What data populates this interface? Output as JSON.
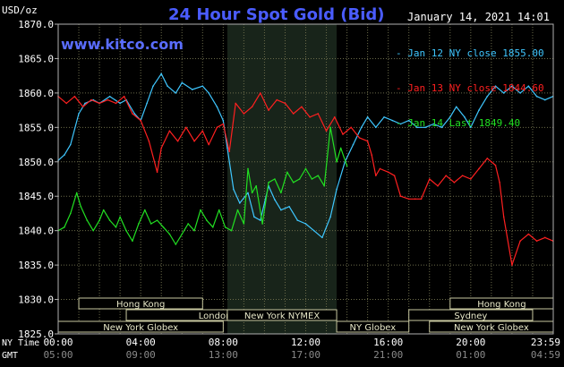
{
  "header": {
    "title": "24 Hour Spot Gold (Bid)",
    "website": "www.kitco.com",
    "date": "January 14, 2021 14:01",
    "unit": "USD/oz"
  },
  "axis_row_labels": {
    "ny": "NY Time",
    "gmt": "GMT"
  },
  "colors": {
    "background": "#000000",
    "grid": "#6b6b4a",
    "frame": "#b0b0b0",
    "nymex_band": "#18241a",
    "jan12": "#3fc7ff",
    "jan13": "#ff2020",
    "jan14": "#22e022",
    "title": "#4a5cff"
  },
  "sessions": [
    {
      "label": "Hong Kong",
      "start": 1.0,
      "end": 7.0
    },
    {
      "label": "London",
      "start": 3.3,
      "end": 11.9
    },
    {
      "label": "New York Globex",
      "start": 0.0,
      "end": 8.0
    },
    {
      "label": "New York NYMEX",
      "start": 8.2,
      "end": 13.5
    },
    {
      "label": "NY Globex",
      "start": 13.5,
      "end": 17.0
    },
    {
      "label": "Hong Kong",
      "start": 19.0,
      "end": 24.0
    },
    {
      "label": "Sydney",
      "start": 17.0,
      "end": 23.0
    },
    {
      "label": "New York Globex",
      "start": 18.0,
      "end": 24.0
    }
  ],
  "chart_data": {
    "type": "line",
    "title": "24 Hour Spot Gold (Bid)",
    "ylabel": "USD/oz",
    "ylim": [
      1825,
      1870
    ],
    "xlim": [
      0,
      24
    ],
    "y_ticks": [
      "1825.0",
      "1830.0",
      "1835.0",
      "1840.0",
      "1845.0",
      "1850.0",
      "1855.0",
      "1860.0",
      "1865.0",
      "1870.0"
    ],
    "x_ticks_ny": [
      "00:00",
      "04:00",
      "08:00",
      "12:00",
      "16:00",
      "20:00",
      "23:59"
    ],
    "x_ticks_gmt": [
      "05:00",
      "09:00",
      "13:00",
      "17:00",
      "21:00",
      "01:00",
      "04:59"
    ],
    "grid": true,
    "legend_position": "top-right",
    "series": [
      {
        "name": "Jan 12 NY close 1855.00",
        "color": "#3fc7ff",
        "x": [
          0,
          0.3,
          0.6,
          1.0,
          1.3,
          1.7,
          2.0,
          2.5,
          3.0,
          3.3,
          3.7,
          4.0,
          4.3,
          4.6,
          5.0,
          5.3,
          5.7,
          6.0,
          6.5,
          7.0,
          7.3,
          7.7,
          8.0,
          8.2,
          8.5,
          8.8,
          9.2,
          9.5,
          9.8,
          10.2,
          10.5,
          10.8,
          11.2,
          11.6,
          12.0,
          12.4,
          12.8,
          13.2,
          13.5,
          13.9,
          14.3,
          14.7,
          15.0,
          15.4,
          15.8,
          16.2,
          16.6,
          17.0,
          17.4,
          17.8,
          18.2,
          18.6,
          19.0,
          19.3,
          19.7,
          20.0,
          20.4,
          20.8,
          21.2,
          21.6,
          22.0,
          22.4,
          22.8,
          23.2,
          23.6,
          23.99
        ],
        "values": [
          1850.2,
          1851.0,
          1852.5,
          1857.0,
          1858.5,
          1859.0,
          1858.5,
          1859.5,
          1858.5,
          1859.0,
          1857.0,
          1856.0,
          1858.5,
          1861.0,
          1862.8,
          1861.0,
          1860.0,
          1861.5,
          1860.5,
          1861.0,
          1860.0,
          1858.0,
          1856.0,
          1852.0,
          1846.0,
          1844.0,
          1845.5,
          1842.0,
          1841.5,
          1846.5,
          1844.5,
          1843.0,
          1843.5,
          1841.5,
          1841.0,
          1840.0,
          1839.0,
          1842.0,
          1846.0,
          1850.0,
          1852.5,
          1855.0,
          1856.5,
          1855.0,
          1856.5,
          1856.0,
          1855.5,
          1856.0,
          1855.0,
          1855.0,
          1855.5,
          1855.0,
          1856.5,
          1858.0,
          1856.5,
          1855.0,
          1857.5,
          1859.5,
          1861.0,
          1860.0,
          1861.0,
          1860.0,
          1861.0,
          1859.5,
          1859.0,
          1859.5
        ]
      },
      {
        "name": "Jan 13 NY close 1844.60",
        "color": "#ff2020",
        "x": [
          0,
          0.4,
          0.8,
          1.2,
          1.6,
          2.0,
          2.4,
          2.8,
          3.2,
          3.6,
          4.0,
          4.4,
          4.8,
          5.0,
          5.4,
          5.8,
          6.2,
          6.6,
          7.0,
          7.3,
          7.7,
          8.0,
          8.3,
          8.6,
          9.0,
          9.4,
          9.8,
          10.2,
          10.6,
          11.0,
          11.4,
          11.8,
          12.2,
          12.6,
          13.0,
          13.4,
          13.8,
          14.2,
          14.6,
          15.0,
          15.2,
          15.4,
          15.6,
          16.0,
          16.3,
          16.6,
          17.0,
          17.3,
          17.6,
          18.0,
          18.4,
          18.8,
          19.2,
          19.6,
          20.0,
          20.4,
          20.8,
          21.0,
          21.2,
          21.4,
          21.6,
          22.0,
          22.4,
          22.8,
          23.2,
          23.6,
          23.99
        ],
        "values": [
          1859.5,
          1858.5,
          1859.5,
          1858.0,
          1859.0,
          1858.5,
          1859.0,
          1858.5,
          1859.5,
          1857.0,
          1856.0,
          1853.0,
          1848.5,
          1852.0,
          1854.5,
          1853.0,
          1855.0,
          1853.0,
          1854.5,
          1852.5,
          1855.0,
          1855.5,
          1851.5,
          1858.5,
          1857.0,
          1858.0,
          1860.0,
          1857.5,
          1859.0,
          1858.5,
          1857.0,
          1858.0,
          1856.5,
          1857.0,
          1854.5,
          1856.5,
          1854.0,
          1855.0,
          1853.5,
          1853.0,
          1851.0,
          1848.0,
          1849.0,
          1848.5,
          1848.0,
          1845.0,
          1844.6,
          1844.6,
          1844.6,
          1847.5,
          1846.5,
          1848.0,
          1847.0,
          1848.0,
          1847.5,
          1849.0,
          1850.5,
          1850.0,
          1849.5,
          1847.0,
          1842.0,
          1835.0,
          1838.5,
          1839.5,
          1838.5,
          1839.0,
          1838.5
        ]
      },
      {
        "name": "Jan 14 Last 1849.40",
        "color": "#22e022",
        "x": [
          0,
          0.3,
          0.6,
          0.9,
          1.1,
          1.4,
          1.7,
          2.0,
          2.2,
          2.5,
          2.8,
          3.0,
          3.3,
          3.6,
          3.9,
          4.2,
          4.5,
          4.8,
          5.1,
          5.4,
          5.7,
          6.0,
          6.3,
          6.6,
          6.9,
          7.2,
          7.5,
          7.8,
          8.1,
          8.4,
          8.7,
          9.0,
          9.2,
          9.4,
          9.6,
          9.9,
          10.2,
          10.5,
          10.8,
          11.1,
          11.4,
          11.7,
          12.0,
          12.3,
          12.6,
          12.9,
          13.2,
          13.5,
          13.7,
          14.0
        ],
        "values": [
          1840.0,
          1840.5,
          1842.5,
          1845.5,
          1843.5,
          1841.5,
          1840.0,
          1841.5,
          1843.0,
          1841.5,
          1840.5,
          1842.0,
          1840.0,
          1838.5,
          1841.0,
          1843.0,
          1841.0,
          1841.5,
          1840.5,
          1839.5,
          1838.0,
          1839.5,
          1841.0,
          1840.0,
          1843.0,
          1841.5,
          1840.5,
          1843.0,
          1840.5,
          1840.0,
          1843.0,
          1841.0,
          1849.0,
          1845.5,
          1846.5,
          1841.0,
          1847.0,
          1847.5,
          1845.5,
          1848.5,
          1847.0,
          1847.5,
          1849.0,
          1847.5,
          1848.0,
          1846.5,
          1855.0,
          1850.0,
          1852.0,
          1849.4
        ]
      }
    ]
  }
}
